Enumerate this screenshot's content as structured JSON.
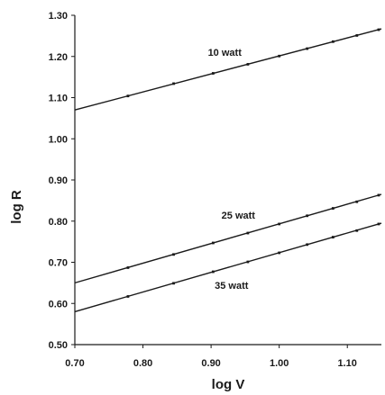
{
  "chart_data": {
    "type": "line",
    "title": "",
    "xlabel": "log V",
    "ylabel": "log R",
    "xlim": [
      0.7,
      1.15
    ],
    "ylim": [
      0.5,
      1.3
    ],
    "x_ticks": [
      "0.70",
      "0.80",
      "0.90",
      "1.00",
      "1.10"
    ],
    "y_ticks": [
      "0.50",
      "0.60",
      "0.70",
      "0.80",
      "0.90",
      "1.00",
      "1.10",
      "1.20",
      "1.30"
    ],
    "grid": false,
    "legend": "none",
    "line_color": "#1a1a1a",
    "series": [
      {
        "name": "10 watt",
        "line": {
          "x": [
            0.7,
            1.15
          ],
          "y": [
            1.07,
            1.267
          ]
        },
        "markers": {
          "x": [
            0.778,
            0.845,
            0.903,
            0.954,
            1.0,
            1.041,
            1.079,
            1.114,
            1.146
          ],
          "y": [
            1.104,
            1.134,
            1.159,
            1.181,
            1.201,
            1.219,
            1.236,
            1.251,
            1.265
          ]
        }
      },
      {
        "name": "25 watt",
        "line": {
          "x": [
            0.7,
            1.15
          ],
          "y": [
            0.65,
            0.865
          ]
        },
        "markers": {
          "x": [
            0.778,
            0.845,
            0.903,
            0.954,
            1.0,
            1.041,
            1.079,
            1.114,
            1.146
          ],
          "y": [
            0.687,
            0.719,
            0.747,
            0.771,
            0.793,
            0.813,
            0.831,
            0.847,
            0.863
          ]
        }
      },
      {
        "name": "35 watt",
        "line": {
          "x": [
            0.7,
            1.15
          ],
          "y": [
            0.58,
            0.795
          ]
        },
        "markers": {
          "x": [
            0.778,
            0.845,
            0.903,
            0.954,
            1.0,
            1.041,
            1.079,
            1.114,
            1.146
          ],
          "y": [
            0.617,
            0.649,
            0.677,
            0.701,
            0.723,
            0.743,
            0.761,
            0.777,
            0.793
          ]
        }
      }
    ]
  }
}
